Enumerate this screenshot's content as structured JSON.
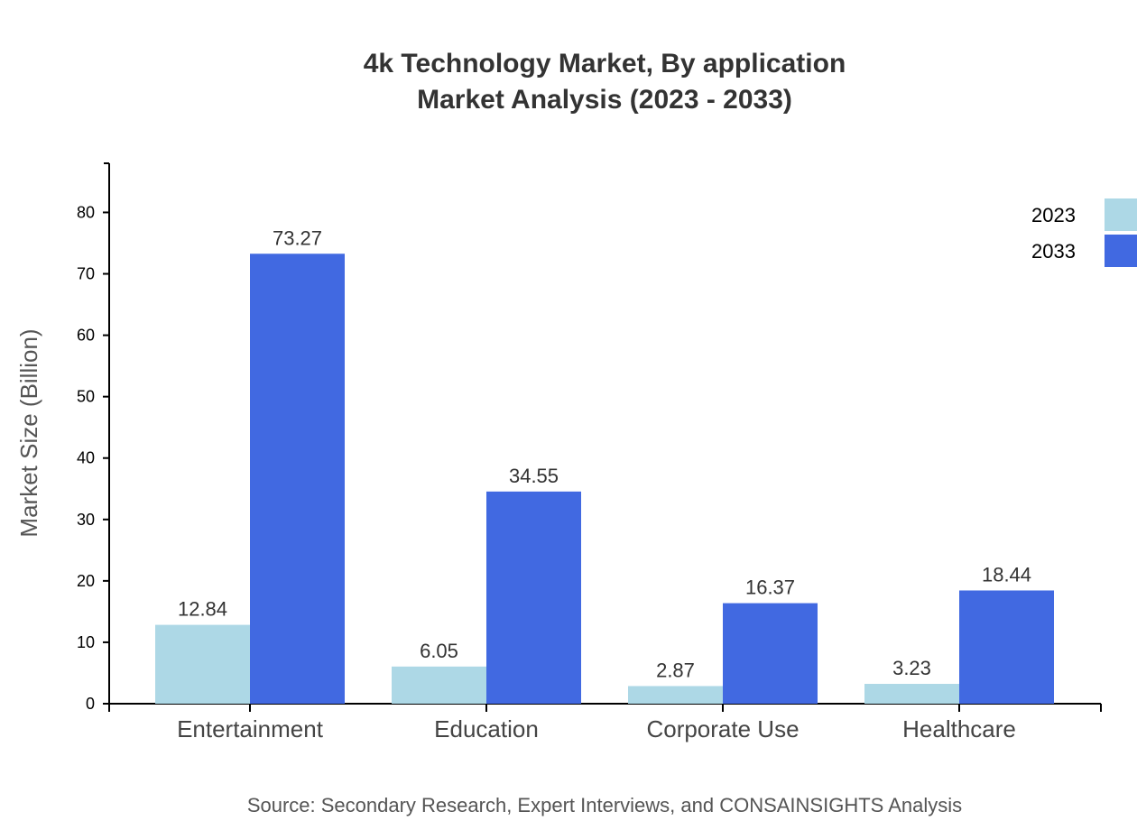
{
  "chart_data": {
    "type": "bar",
    "title": "4k Technology Market, By application",
    "subtitle": "Market Analysis (2023 - 2033)",
    "xlabel": "",
    "ylabel": "Market Size (Billion)",
    "ylim": [
      0,
      88
    ],
    "yticks": [
      0,
      10,
      20,
      30,
      40,
      50,
      60,
      70,
      80
    ],
    "categories": [
      "Entertainment",
      "Education",
      "Corporate Use",
      "Healthcare"
    ],
    "series": [
      {
        "name": "2023",
        "color": "#ADD8E6",
        "values": [
          12.84,
          6.05,
          2.87,
          3.23
        ]
      },
      {
        "name": "2033",
        "color": "#4169E1",
        "values": [
          73.27,
          34.55,
          16.37,
          18.44
        ]
      }
    ],
    "legend_position": "top-right",
    "grid": false,
    "source": "Source: Secondary Research, Expert Interviews, and CONSAINSIGHTS Analysis"
  }
}
